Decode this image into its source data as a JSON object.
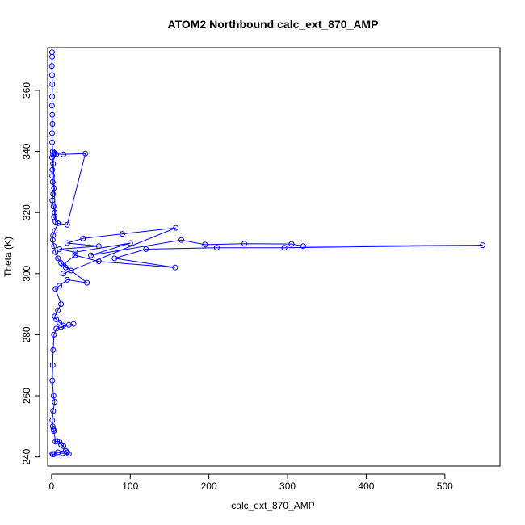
{
  "chart_data": {
    "type": "line",
    "title": "ATOM2 Northbound calc_ext_870_AMP",
    "xlabel": "calc_ext_870_AMP",
    "ylabel": "Theta (K)",
    "xlim": [
      -5,
      570
    ],
    "ylim": [
      237,
      374
    ],
    "xticks": [
      0,
      100,
      200,
      300,
      400,
      500
    ],
    "yticks": [
      240,
      260,
      280,
      300,
      320,
      340,
      360
    ],
    "grid": false,
    "legend": "none",
    "series": [
      {
        "color": "#0000ff",
        "marker": "open-circle",
        "x": [
          0.5,
          0.8,
          0.3,
          0.6,
          1.0,
          0.7,
          0.4,
          0.9,
          1.2,
          0.6,
          0.8,
          1.5,
          0.5,
          2.0,
          1.0,
          0.7,
          1.5,
          3.0,
          2.0,
          1.0,
          2.5,
          4.0,
          3.0,
          5.0,
          2.0,
          3.5,
          6.0,
          4.0,
          15.0,
          43.0,
          20.0,
          8.0,
          4.0,
          2.0,
          1.5,
          3.0,
          5.0,
          8.0,
          12.0,
          18.0,
          25.0,
          15.0,
          158.0,
          90.0,
          40.0,
          20.0,
          60.0,
          10.0,
          30.0,
          100.0,
          50.0,
          165.0,
          195.0,
          245.0,
          305.0,
          320.0,
          548.0,
          296.0,
          210.0,
          120.0,
          80.0,
          157.0,
          60.0,
          30.0,
          15.0,
          45.0,
          20.0,
          10.0,
          5.0,
          12.0,
          8.0,
          4.0,
          6.0,
          10.0,
          15.0,
          22.0,
          28.0,
          12.0,
          6.0,
          3.0,
          2.0,
          1.5,
          1.0,
          2.5,
          4.0,
          2.0,
          1.0,
          1.5,
          2.5,
          3.0,
          5.0,
          7.0,
          10.0,
          12.0,
          15.0,
          18.0,
          20.0,
          22.0,
          14.0,
          8.0,
          4.0,
          2.0,
          1.0
        ],
        "y": [
          372.5,
          371.0,
          368.0,
          365.0,
          362.0,
          358.0,
          355.0,
          352.0,
          349.0,
          346.0,
          343.0,
          340.0,
          338.0,
          336.0,
          334.0,
          332.0,
          330.0,
          328.0,
          326.0,
          324.0,
          322.0,
          320.0,
          318.5,
          317.0,
          339.0,
          339.5,
          339.0,
          339.2,
          339.0,
          339.3,
          316.0,
          316.5,
          314.0,
          312.5,
          311.0,
          309.0,
          307.0,
          305.0,
          303.5,
          302.0,
          301.0,
          300.0,
          315.0,
          313.0,
          311.5,
          310.0,
          309.0,
          308.0,
          307.0,
          310.0,
          306.0,
          311.0,
          309.5,
          309.8,
          309.7,
          309.0,
          309.3,
          308.5,
          308.5,
          308.0,
          305.0,
          302.0,
          304.0,
          306.0,
          303.0,
          297.0,
          298.0,
          296.0,
          295.0,
          290.0,
          288.0,
          286.0,
          285.0,
          284.0,
          283.0,
          283.2,
          283.5,
          282.5,
          282.0,
          280.0,
          275.0,
          270.0,
          265.0,
          260.0,
          258.0,
          255.0,
          252.0,
          250.0,
          249.0,
          248.5,
          245.0,
          245.2,
          245.0,
          244.0,
          243.5,
          242.0,
          241.5,
          241.0,
          241.2,
          241.5,
          241.0,
          240.8,
          241.0
        ]
      }
    ]
  }
}
